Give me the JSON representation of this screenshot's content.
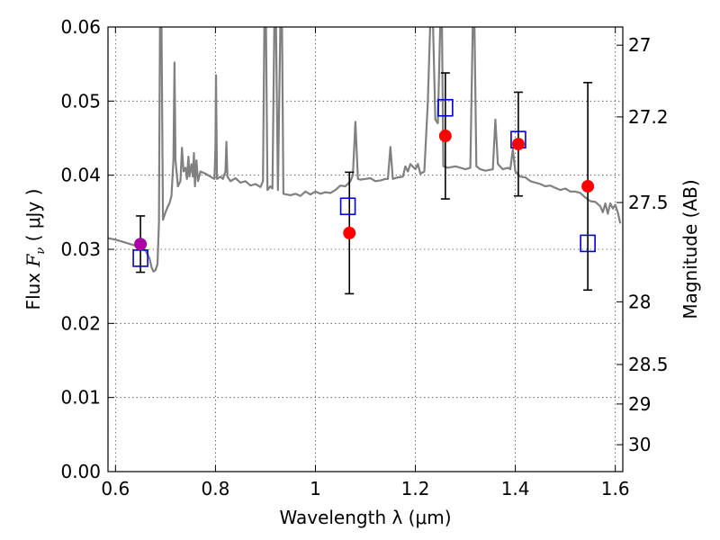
{
  "chart_data": {
    "type": "scatter",
    "xlabel": "Wavelength  λ (μm)",
    "ylabel_prefix": "Flux ",
    "ylabel_symbol": "F",
    "ylabel_subscript": "ν",
    "ylabel_suffix": "  ( μJy )",
    "y2label": "Magnitude (AB)",
    "xlim": [
      0.585,
      1.615
    ],
    "ylim": [
      0.0,
      0.06
    ],
    "x_ticks": [
      0.6,
      0.8,
      1.0,
      1.2,
      1.4,
      1.6
    ],
    "x_tick_labels": [
      "0.6",
      "0.8",
      "1",
      "1.2",
      "1.4",
      "1.6"
    ],
    "y_ticks": [
      0.0,
      0.01,
      0.02,
      0.03,
      0.04,
      0.05,
      0.06
    ],
    "y_tick_labels": [
      "0.00",
      "0.01",
      "0.02",
      "0.03",
      "0.04",
      "0.05",
      "0.06"
    ],
    "y2_ticks": [
      27,
      27.2,
      27.5,
      28,
      28.5,
      29,
      30
    ],
    "y2_tick_labels": [
      "27",
      "27.2",
      "27.5",
      "28",
      "28.5",
      "29",
      "30"
    ],
    "grid": true,
    "colors": {
      "spectrum": "#808080",
      "observed": "#ff0000",
      "observed_special": "#aa00aa",
      "model": "#0000cc",
      "errorbar": "#000000"
    },
    "observed_points": [
      {
        "x": 0.65,
        "y": 0.0307,
        "err": 0.0038,
        "color_key": "observed_special"
      },
      {
        "x": 1.068,
        "y": 0.0322,
        "err": 0.0082,
        "color_key": "observed"
      },
      {
        "x": 1.26,
        "y": 0.0453,
        "err": 0.0085,
        "color_key": "observed"
      },
      {
        "x": 1.406,
        "y": 0.0442,
        "err": 0.007,
        "color_key": "observed"
      },
      {
        "x": 1.545,
        "y": 0.0385,
        "err": 0.014,
        "color_key": "observed"
      }
    ],
    "model_points": [
      {
        "x": 0.65,
        "y": 0.0288
      },
      {
        "x": 1.065,
        "y": 0.0358
      },
      {
        "x": 1.26,
        "y": 0.0491
      },
      {
        "x": 1.406,
        "y": 0.0448
      },
      {
        "x": 1.545,
        "y": 0.0308
      }
    ],
    "spectrum": [
      [
        0.585,
        0.0315
      ],
      [
        0.6,
        0.0313
      ],
      [
        0.62,
        0.0309
      ],
      [
        0.64,
        0.0305
      ],
      [
        0.65,
        0.0302
      ],
      [
        0.66,
        0.0298
      ],
      [
        0.668,
        0.0288
      ],
      [
        0.672,
        0.0276
      ],
      [
        0.676,
        0.027
      ],
      [
        0.68,
        0.0272
      ],
      [
        0.684,
        0.028
      ],
      [
        0.687,
        0.0335
      ],
      [
        0.689,
        0.061
      ],
      [
        0.692,
        0.061
      ],
      [
        0.695,
        0.034
      ],
      [
        0.7,
        0.035
      ],
      [
        0.705,
        0.0358
      ],
      [
        0.708,
        0.0362
      ],
      [
        0.712,
        0.0372
      ],
      [
        0.716,
        0.042
      ],
      [
        0.718,
        0.0552
      ],
      [
        0.72,
        0.042
      ],
      [
        0.725,
        0.0385
      ],
      [
        0.73,
        0.0392
      ],
      [
        0.733,
        0.0437
      ],
      [
        0.736,
        0.0405
      ],
      [
        0.74,
        0.041
      ],
      [
        0.743,
        0.0395
      ],
      [
        0.746,
        0.0425
      ],
      [
        0.748,
        0.0398
      ],
      [
        0.752,
        0.0415
      ],
      [
        0.755,
        0.0398
      ],
      [
        0.757,
        0.043
      ],
      [
        0.759,
        0.0385
      ],
      [
        0.762,
        0.042
      ],
      [
        0.765,
        0.0392
      ],
      [
        0.77,
        0.0405
      ],
      [
        0.78,
        0.0402
      ],
      [
        0.79,
        0.0398
      ],
      [
        0.798,
        0.0395
      ],
      [
        0.8,
        0.0438
      ],
      [
        0.801,
        0.0535
      ],
      [
        0.803,
        0.0395
      ],
      [
        0.81,
        0.0398
      ],
      [
        0.815,
        0.0395
      ],
      [
        0.82,
        0.0405
      ],
      [
        0.822,
        0.0445
      ],
      [
        0.824,
        0.0398
      ],
      [
        0.83,
        0.0392
      ],
      [
        0.84,
        0.0396
      ],
      [
        0.85,
        0.039
      ],
      [
        0.86,
        0.0392
      ],
      [
        0.87,
        0.0386
      ],
      [
        0.88,
        0.0388
      ],
      [
        0.89,
        0.0384
      ],
      [
        0.895,
        0.0392
      ],
      [
        0.898,
        0.061
      ],
      [
        0.901,
        0.061
      ],
      [
        0.904,
        0.038
      ],
      [
        0.91,
        0.0385
      ],
      [
        0.914,
        0.0382
      ],
      [
        0.918,
        0.061
      ],
      [
        0.921,
        0.061
      ],
      [
        0.925,
        0.038
      ],
      [
        0.93,
        0.061
      ],
      [
        0.933,
        0.061
      ],
      [
        0.936,
        0.0375
      ],
      [
        0.95,
        0.0373
      ],
      [
        0.96,
        0.0375
      ],
      [
        0.97,
        0.0372
      ],
      [
        0.98,
        0.0378
      ],
      [
        0.99,
        0.0374
      ],
      [
        1.0,
        0.0378
      ],
      [
        1.01,
        0.0375
      ],
      [
        1.02,
        0.0377
      ],
      [
        1.03,
        0.0376
      ],
      [
        1.04,
        0.038
      ],
      [
        1.05,
        0.0386
      ],
      [
        1.06,
        0.0385
      ],
      [
        1.07,
        0.0392
      ],
      [
        1.075,
        0.04
      ],
      [
        1.08,
        0.0472
      ],
      [
        1.085,
        0.0395
      ],
      [
        1.09,
        0.0394
      ],
      [
        1.1,
        0.0395
      ],
      [
        1.11,
        0.0396
      ],
      [
        1.12,
        0.0392
      ],
      [
        1.13,
        0.0393
      ],
      [
        1.14,
        0.0395
      ],
      [
        1.145,
        0.0395
      ],
      [
        1.15,
        0.0438
      ],
      [
        1.155,
        0.0395
      ],
      [
        1.165,
        0.0397
      ],
      [
        1.175,
        0.0398
      ],
      [
        1.18,
        0.0412
      ],
      [
        1.185,
        0.0405
      ],
      [
        1.19,
        0.0415
      ],
      [
        1.2,
        0.0408
      ],
      [
        1.205,
        0.0415
      ],
      [
        1.21,
        0.0402
      ],
      [
        1.218,
        0.0405
      ],
      [
        1.225,
        0.05
      ],
      [
        1.23,
        0.061
      ],
      [
        1.235,
        0.061
      ],
      [
        1.24,
        0.0475
      ],
      [
        1.245,
        0.047
      ],
      [
        1.25,
        0.061
      ],
      [
        1.253,
        0.061
      ],
      [
        1.256,
        0.0412
      ],
      [
        1.265,
        0.041
      ],
      [
        1.28,
        0.0412
      ],
      [
        1.3,
        0.0408
      ],
      [
        1.31,
        0.041
      ],
      [
        1.315,
        0.061
      ],
      [
        1.318,
        0.061
      ],
      [
        1.322,
        0.0412
      ],
      [
        1.33,
        0.0408
      ],
      [
        1.34,
        0.0406
      ],
      [
        1.355,
        0.0408
      ],
      [
        1.36,
        0.0475
      ],
      [
        1.365,
        0.0415
      ],
      [
        1.375,
        0.0408
      ],
      [
        1.385,
        0.041
      ],
      [
        1.39,
        0.0408
      ],
      [
        1.395,
        0.0435
      ],
      [
        1.4,
        0.0405
      ],
      [
        1.41,
        0.0398
      ],
      [
        1.42,
        0.0397
      ],
      [
        1.43,
        0.0392
      ],
      [
        1.44,
        0.039
      ],
      [
        1.45,
        0.0388
      ],
      [
        1.46,
        0.0385
      ],
      [
        1.47,
        0.0386
      ],
      [
        1.48,
        0.0383
      ],
      [
        1.49,
        0.038
      ],
      [
        1.5,
        0.0382
      ],
      [
        1.51,
        0.0378
      ],
      [
        1.52,
        0.0378
      ],
      [
        1.53,
        0.0376
      ],
      [
        1.54,
        0.037
      ],
      [
        1.55,
        0.0365
      ],
      [
        1.56,
        0.0364
      ],
      [
        1.57,
        0.0358
      ],
      [
        1.575,
        0.035
      ],
      [
        1.58,
        0.0362
      ],
      [
        1.585,
        0.0348
      ],
      [
        1.59,
        0.0362
      ],
      [
        1.595,
        0.0355
      ],
      [
        1.6,
        0.036
      ],
      [
        1.605,
        0.035
      ],
      [
        1.61,
        0.0335
      ]
    ]
  }
}
